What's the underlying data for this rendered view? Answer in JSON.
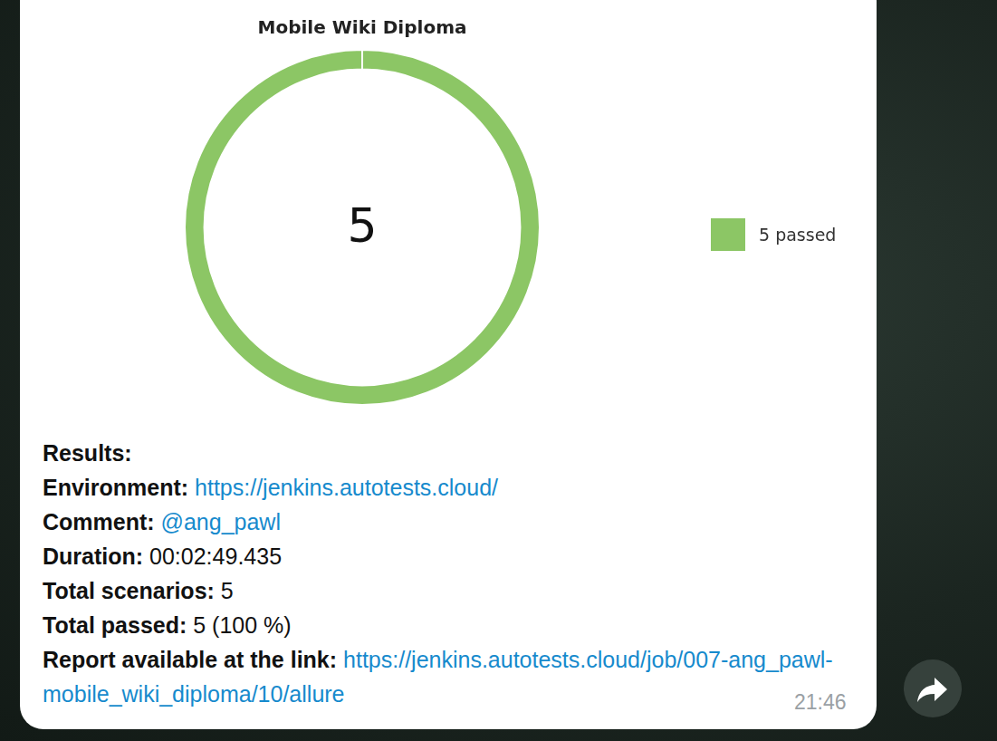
{
  "chart_data": {
    "type": "doughnut",
    "title": "Mobile Wiki Diploma",
    "categories": [
      "5 passed"
    ],
    "values": [
      5
    ],
    "color": "#8cc665",
    "legend": "right",
    "annotations": [
      "5"
    ]
  },
  "message": {
    "lines": [
      {
        "label": "Results:"
      },
      {
        "label": "Environment:",
        "value": "https://jenkins.autotests.cloud/",
        "link": true
      },
      {
        "label": "Comment:",
        "value": "@ang_pawl",
        "link": true
      },
      {
        "label": "Duration:",
        "value": "00:02:49.435"
      },
      {
        "label": "Total scenarios:",
        "value": "5"
      },
      {
        "label": "Total passed:",
        "value": "5 (100 %)"
      },
      {
        "label": "Report available at the link:",
        "value": "https://jenkins.autotests.cloud/job/007-ang_pawl-mobile_wiki_diploma/10/allure",
        "link": true
      }
    ],
    "time": "21:46"
  }
}
